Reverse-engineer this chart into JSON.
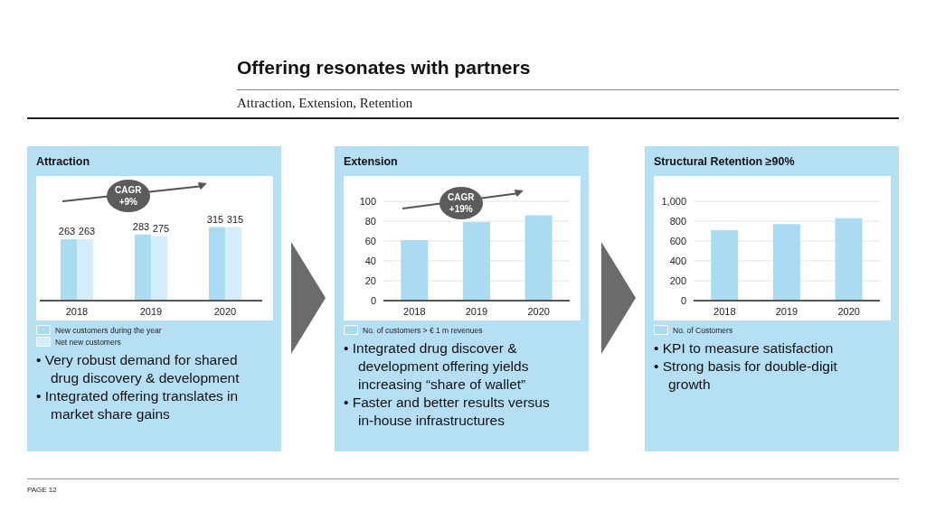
{
  "chart_data": [
    {
      "type": "other",
      "title": "Offering resonates with partners",
      "subtitle": "Attraction, Extension, Retention",
      "annotations": [
        "PAGE 12"
      ]
    },
    {
      "type": "bar",
      "title": "Attraction",
      "categories": [
        "2018",
        "2019",
        "2020"
      ],
      "series": [
        {
          "name": "New customers during the year",
          "color": "#a9dcf2",
          "values": [
            263,
            283,
            315
          ]
        },
        {
          "name": "Net new customers",
          "color": "#d3eefa",
          "values": [
            263,
            275,
            315
          ]
        }
      ],
      "data_labels": true,
      "legend": "bottom",
      "annotations": [
        {
          "text": "CAGR +9%"
        },
        "• Very robust demand for shared drug discovery & development",
        "• Integrated offering translates in market share gains"
      ]
    },
    {
      "type": "bar",
      "title": "Extension",
      "categories": [
        "2018",
        "2019",
        "2020"
      ],
      "series": [
        {
          "name": "No. of customers > € 1 m revenues",
          "color": "#a9dcf2",
          "values": [
            61,
            79,
            86
          ]
        }
      ],
      "ylim": [
        0,
        100
      ],
      "yticks": [
        0,
        20,
        40,
        60,
        80,
        100
      ],
      "grid": "y",
      "legend": "bottom",
      "annotations": [
        {
          "text": "CAGR +19%"
        },
        "• Integrated drug discover & development offering yields increasing “share of wallet”",
        "• Faster and better results versus in-house infrastructures"
      ]
    },
    {
      "type": "bar",
      "title": "Structural Retention ≥90%",
      "categories": [
        "2018",
        "2019",
        "2020"
      ],
      "series": [
        {
          "name": "No. of Customers",
          "color": "#a9dcf2",
          "values": [
            710,
            770,
            830
          ]
        }
      ],
      "ylim": [
        0,
        1000
      ],
      "yticks": [
        0,
        {
          "value": 200,
          "label": "200"
        },
        {
          "value": 400,
          "label": "400"
        },
        {
          "value": 600,
          "label": "600"
        },
        {
          "value": 800,
          "label": "800"
        },
        {
          "value": 1000,
          "label": "1,000"
        }
      ],
      "grid": "y",
      "legend": "bottom",
      "annotations": [
        "• KPI to measure satisfaction",
        "• Strong basis for double-digit growth"
      ]
    }
  ]
}
